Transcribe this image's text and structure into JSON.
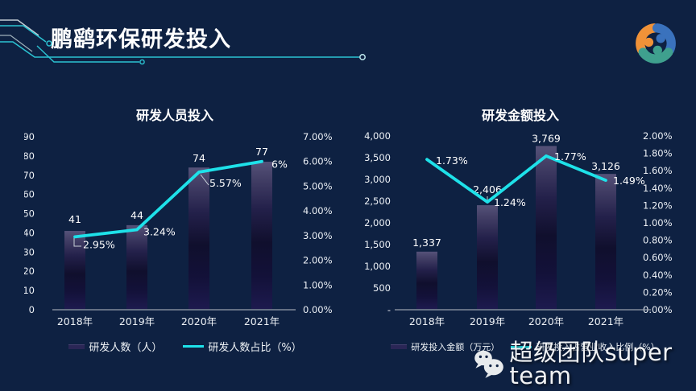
{
  "page_title": "鹏鹞环保研发投入",
  "watermark": {
    "icon": "wechat-icon",
    "text": "超级团队super team"
  },
  "colors": {
    "background": "#0e2142",
    "accent_cyan": "#1ee1e9",
    "decoration_teal": "#2bc3d2",
    "bar_top": "#555279",
    "bar_dark": "#100f2d",
    "bar_bottom": "#1d1a4e",
    "axis_line": "#97a1ab",
    "logo_orange": "#f09238",
    "logo_blue": "#3a72bd",
    "logo_teal": "#3fa08e"
  },
  "chart_data": [
    {
      "type": "combo-bar-line",
      "title": "研发人员投入",
      "categories": [
        "2018年",
        "2019年",
        "2020年",
        "2021年"
      ],
      "series": [
        {
          "name": "研发人数（人）",
          "chart": "bar",
          "axis": "left",
          "values": [
            41,
            44,
            74,
            77
          ],
          "labels": [
            "41",
            "44",
            "74",
            "77"
          ]
        },
        {
          "name": "研发人数占比（%）",
          "chart": "line",
          "axis": "right",
          "values": [
            2.95,
            3.24,
            5.57,
            6
          ],
          "labels": [
            "2.95%",
            "3.24%",
            "5.57%",
            "6%"
          ]
        }
      ],
      "left_axis": {
        "min": 0,
        "max": 90,
        "ticks": [
          "90",
          "80",
          "70",
          "60",
          "50",
          "40",
          "30",
          "20",
          "10",
          "0"
        ]
      },
      "right_axis": {
        "min": 0,
        "max": 7,
        "ticks": [
          "7.00%",
          "6.00%",
          "5.00%",
          "4.00%",
          "3.00%",
          "2.00%",
          "1.00%",
          "0.00%"
        ]
      },
      "legend_position": "bottom",
      "grid": "off"
    },
    {
      "type": "combo-bar-line",
      "title": "研发金额投入",
      "categories": [
        "2018年",
        "2019年",
        "2020年",
        "2021年"
      ],
      "series": [
        {
          "name": "研发投入金额（万元）",
          "chart": "bar",
          "axis": "left",
          "values": [
            1337,
            2406,
            3769,
            3126
          ],
          "labels": [
            "1,337",
            "2,406",
            "3,769",
            "3,126"
          ]
        },
        {
          "name": "研发投入占营业收入比例（%）",
          "chart": "line",
          "axis": "right",
          "values": [
            1.73,
            1.24,
            1.77,
            1.49
          ],
          "labels": [
            "1.73%",
            "1.24%",
            "1.77%",
            "1.49%"
          ]
        }
      ],
      "left_axis": {
        "min": 0,
        "max": 4000,
        "ticks": [
          "4,000",
          "3,500",
          "3,000",
          "2,500",
          "2,000",
          "1,500",
          "1,000",
          "500",
          "-"
        ]
      },
      "right_axis": {
        "min": 0,
        "max": 2,
        "ticks": [
          "2.00%",
          "1.80%",
          "1.60%",
          "1.40%",
          "1.20%",
          "1.00%",
          "0.80%",
          "0.60%",
          "0.40%",
          "0.20%",
          "0.00%"
        ]
      },
      "legend_position": "bottom",
      "grid": "off"
    }
  ]
}
